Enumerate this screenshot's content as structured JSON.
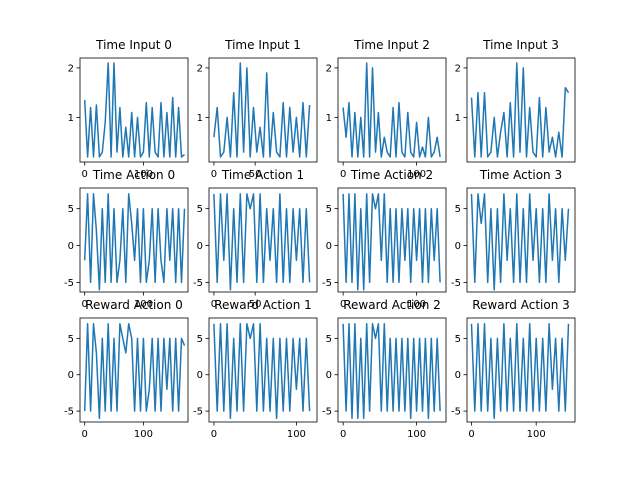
{
  "figure": {
    "background": "#ffffff",
    "line_color": "#1f77b4"
  },
  "chart_data": [
    {
      "type": "line",
      "title": "Time Input 0",
      "xlim": [
        -8,
        176
      ],
      "ylim": [
        0.1,
        2.2
      ],
      "xticks": [
        0,
        100
      ],
      "yticks": [
        1,
        2
      ],
      "x": [
        0,
        5,
        10,
        15,
        20,
        25,
        30,
        35,
        40,
        45,
        50,
        55,
        60,
        65,
        70,
        75,
        80,
        85,
        90,
        95,
        100,
        105,
        110,
        115,
        120,
        125,
        130,
        135,
        140,
        145,
        150,
        155,
        160,
        165,
        170
      ],
      "series": [
        {
          "values": [
            1.35,
            0.2,
            1.2,
            0.2,
            1.25,
            0.2,
            0.3,
            0.9,
            2.1,
            0.2,
            2.1,
            0.3,
            1.2,
            0.2,
            0.8,
            0.2,
            1.1,
            0.2,
            1.0,
            0.2,
            0.3,
            1.3,
            0.2,
            1.2,
            0.3,
            0.2,
            1.3,
            0.2,
            1.1,
            0.2,
            1.4,
            0.2,
            1.2,
            0.2,
            0.25
          ]
        }
      ]
    },
    {
      "type": "line",
      "title": "Time Input 1",
      "xlim": [
        -6,
        125
      ],
      "ylim": [
        0.1,
        2.2
      ],
      "xticks": [
        0,
        50
      ],
      "yticks": [
        1,
        2
      ],
      "x": [
        0,
        4,
        8,
        12,
        16,
        20,
        24,
        28,
        32,
        36,
        40,
        44,
        48,
        52,
        56,
        60,
        64,
        68,
        72,
        76,
        80,
        84,
        88,
        92,
        96,
        100,
        104,
        108,
        112,
        116
      ],
      "series": [
        {
          "values": [
            0.6,
            1.2,
            0.2,
            0.3,
            1.0,
            0.2,
            1.5,
            0.2,
            2.1,
            0.3,
            2.0,
            0.2,
            1.2,
            0.3,
            0.8,
            0.2,
            1.9,
            0.2,
            1.1,
            0.3,
            0.2,
            1.3,
            0.2,
            1.2,
            0.3,
            1.0,
            0.2,
            1.3,
            0.2,
            1.25
          ]
        }
      ]
    },
    {
      "type": "line",
      "title": "Time Input 2",
      "xlim": [
        -7,
        140
      ],
      "ylim": [
        0.1,
        2.2
      ],
      "xticks": [
        0,
        100
      ],
      "yticks": [
        1,
        2
      ],
      "x": [
        0,
        4,
        8,
        12,
        16,
        20,
        24,
        28,
        32,
        36,
        40,
        44,
        48,
        52,
        56,
        60,
        64,
        68,
        72,
        76,
        80,
        84,
        88,
        92,
        96,
        100,
        104,
        108,
        112,
        116,
        120,
        124,
        128,
        132
      ],
      "series": [
        {
          "values": [
            1.2,
            0.6,
            1.3,
            0.2,
            1.1,
            0.2,
            1.0,
            0.2,
            2.1,
            0.2,
            2.0,
            0.3,
            1.1,
            0.2,
            0.6,
            0.3,
            0.2,
            1.2,
            0.2,
            1.3,
            0.3,
            0.2,
            1.1,
            0.3,
            0.2,
            0.9,
            0.2,
            0.4,
            0.2,
            1.0,
            0.2,
            0.3,
            0.6,
            0.2
          ]
        }
      ]
    },
    {
      "type": "line",
      "title": "Time Input 3",
      "xlim": [
        -7,
        160
      ],
      "ylim": [
        0.1,
        2.2
      ],
      "yticks": [
        1,
        2
      ],
      "xticks": [],
      "x": [
        0,
        5,
        10,
        15,
        20,
        25,
        30,
        35,
        40,
        45,
        50,
        55,
        60,
        65,
        70,
        75,
        80,
        85,
        90,
        95,
        100,
        105,
        110,
        115,
        120,
        125,
        130,
        135,
        140,
        145,
        150
      ],
      "series": [
        {
          "values": [
            1.4,
            0.2,
            1.5,
            0.2,
            1.5,
            0.2,
            0.3,
            1.0,
            0.2,
            0.7,
            1.1,
            0.2,
            1.3,
            0.2,
            2.1,
            0.3,
            2.0,
            0.2,
            1.2,
            0.3,
            0.2,
            1.4,
            0.2,
            1.2,
            0.3,
            0.6,
            0.2,
            0.7,
            0.2,
            1.6,
            1.5
          ]
        }
      ]
    },
    {
      "type": "line",
      "title": "Time Action 0",
      "xlim": [
        -8,
        176
      ],
      "ylim": [
        -6.3,
        7.8
      ],
      "xticks": [
        0,
        100
      ],
      "yticks": [
        -5,
        0,
        5
      ],
      "x": [
        0,
        5,
        10,
        15,
        20,
        25,
        30,
        35,
        40,
        45,
        50,
        55,
        60,
        65,
        70,
        75,
        80,
        85,
        90,
        95,
        100,
        105,
        110,
        115,
        120,
        125,
        130,
        135,
        140,
        145,
        150,
        155,
        160,
        165,
        170
      ],
      "series": [
        {
          "values": [
            -2,
            7,
            -5,
            7,
            2,
            -6,
            5,
            -5,
            7,
            -5,
            5,
            -5,
            -2,
            5,
            -5,
            7,
            3,
            -2,
            5,
            -5,
            5,
            -5,
            -2,
            5,
            -5,
            5,
            -2,
            -5,
            5,
            -2,
            5,
            -5,
            5,
            -5,
            5
          ]
        }
      ]
    },
    {
      "type": "line",
      "title": "Time Action 1",
      "xlim": [
        -6,
        125
      ],
      "ylim": [
        -6.3,
        7.8
      ],
      "xticks": [
        0,
        50
      ],
      "yticks": [
        -5,
        0,
        5
      ],
      "x": [
        0,
        4,
        8,
        12,
        16,
        20,
        24,
        28,
        32,
        36,
        40,
        44,
        48,
        52,
        56,
        60,
        64,
        68,
        72,
        76,
        80,
        84,
        88,
        92,
        96,
        100,
        104,
        108,
        112,
        116
      ],
      "series": [
        {
          "values": [
            7,
            -5,
            7,
            -2,
            7,
            -6,
            5,
            -5,
            7,
            -5,
            7,
            5,
            7,
            -5,
            7,
            -5,
            5,
            -2,
            5,
            -5,
            7,
            -5,
            5,
            -5,
            5,
            -2,
            5,
            -5,
            5,
            -5
          ]
        }
      ]
    },
    {
      "type": "line",
      "title": "Time Action 2",
      "xlim": [
        -7,
        140
      ],
      "ylim": [
        -6.3,
        7.8
      ],
      "xticks": [
        0,
        100
      ],
      "yticks": [
        -5,
        0,
        5
      ],
      "x": [
        0,
        4,
        8,
        12,
        16,
        20,
        24,
        28,
        32,
        36,
        40,
        44,
        48,
        52,
        56,
        60,
        64,
        68,
        72,
        76,
        80,
        84,
        88,
        92,
        96,
        100,
        104,
        108,
        112,
        116,
        120,
        124,
        128,
        132
      ],
      "series": [
        {
          "values": [
            7,
            -5,
            7,
            -5,
            7,
            -6,
            5,
            -6,
            7,
            -5,
            7,
            5,
            7,
            -2,
            7,
            -5,
            5,
            -5,
            5,
            -5,
            5,
            -2,
            5,
            -5,
            5,
            -2,
            5,
            -5,
            5,
            -5,
            5,
            -2,
            5,
            -5
          ]
        }
      ]
    },
    {
      "type": "line",
      "title": "Time Action 3",
      "xlim": [
        -7,
        160
      ],
      "ylim": [
        -6.3,
        7.8
      ],
      "xticks": [],
      "yticks": [
        -5,
        0,
        5
      ],
      "x": [
        0,
        5,
        10,
        15,
        20,
        25,
        30,
        35,
        40,
        45,
        50,
        55,
        60,
        65,
        70,
        75,
        80,
        85,
        90,
        95,
        100,
        105,
        110,
        115,
        120,
        125,
        130,
        135,
        140,
        145,
        150
      ],
      "series": [
        {
          "values": [
            7,
            -5,
            7,
            3,
            7,
            -5,
            5,
            -6,
            5,
            -5,
            7,
            -2,
            5,
            -5,
            7,
            -5,
            5,
            -5,
            7,
            -2,
            5,
            -5,
            5,
            -5,
            7,
            -2,
            5,
            -5,
            5,
            -2,
            5
          ]
        }
      ]
    },
    {
      "type": "line",
      "title": "Reward Action 0",
      "xlim": [
        -8,
        176
      ],
      "ylim": [
        -6.5,
        7.8
      ],
      "xticks": [
        0,
        100
      ],
      "yticks": [
        -5,
        0,
        5
      ],
      "x": [
        0,
        5,
        10,
        15,
        20,
        25,
        30,
        35,
        40,
        45,
        50,
        55,
        60,
        65,
        70,
        75,
        80,
        85,
        90,
        95,
        100,
        105,
        110,
        115,
        120,
        125,
        130,
        135,
        140,
        145,
        150,
        155,
        160,
        165,
        170
      ],
      "series": [
        {
          "values": [
            -5,
            7,
            -5,
            7,
            3,
            -6,
            5,
            -5,
            7,
            -5,
            5,
            -5,
            7,
            5,
            3,
            7,
            5,
            -5,
            5,
            -5,
            5,
            -5,
            -2,
            5,
            -5,
            5,
            -5,
            5,
            -2,
            5,
            -5,
            5,
            -5,
            5,
            4
          ]
        }
      ]
    },
    {
      "type": "line",
      "title": "Reward Action 1",
      "xlim": [
        -6,
        125
      ],
      "ylim": [
        -6.5,
        7.8
      ],
      "xticks": [
        0,
        100
      ],
      "yticks": [
        -5,
        0,
        5
      ],
      "x": [
        0,
        4,
        8,
        12,
        16,
        20,
        24,
        28,
        32,
        36,
        40,
        44,
        48,
        52,
        56,
        60,
        64,
        68,
        72,
        76,
        80,
        84,
        88,
        92,
        96,
        100,
        104,
        108,
        112,
        116
      ],
      "series": [
        {
          "values": [
            7,
            -5,
            7,
            -5,
            7,
            -6,
            5,
            -5,
            7,
            -5,
            7,
            5,
            7,
            -5,
            7,
            -5,
            5,
            -5,
            5,
            -6,
            5,
            -5,
            5,
            -5,
            5,
            -2,
            5,
            -5,
            5,
            -5
          ]
        }
      ]
    },
    {
      "type": "line",
      "title": "Reward Action 2",
      "xlim": [
        -7,
        140
      ],
      "ylim": [
        -6.5,
        7.8
      ],
      "xticks": [
        0,
        100
      ],
      "yticks": [
        -5,
        0,
        5
      ],
      "x": [
        0,
        4,
        8,
        12,
        16,
        20,
        24,
        28,
        32,
        36,
        40,
        44,
        48,
        52,
        56,
        60,
        64,
        68,
        72,
        76,
        80,
        84,
        88,
        92,
        96,
        100,
        104,
        108,
        112,
        116,
        120,
        124,
        128,
        132
      ],
      "series": [
        {
          "values": [
            7,
            -5,
            7,
            -6,
            7,
            -6,
            5,
            -6,
            7,
            -5,
            7,
            5,
            7,
            -5,
            7,
            -5,
            5,
            -5,
            5,
            -5,
            5,
            -5,
            5,
            -6,
            5,
            -5,
            5,
            -5,
            5,
            -6,
            5,
            -5,
            5,
            -5
          ]
        }
      ]
    },
    {
      "type": "line",
      "title": "Reward Action 3",
      "xlim": [
        -7,
        160
      ],
      "ylim": [
        -6.5,
        7.8
      ],
      "xticks": [
        0,
        100
      ],
      "yticks": [
        -5,
        0,
        5
      ],
      "x": [
        0,
        5,
        10,
        15,
        20,
        25,
        30,
        35,
        40,
        45,
        50,
        55,
        60,
        65,
        70,
        75,
        80,
        85,
        90,
        95,
        100,
        105,
        110,
        115,
        120,
        125,
        130,
        135,
        140,
        145,
        150
      ],
      "series": [
        {
          "values": [
            7,
            -5,
            7,
            -5,
            7,
            -5,
            5,
            -6,
            5,
            -5,
            7,
            -5,
            5,
            -5,
            7,
            -5,
            5,
            -5,
            7,
            -5,
            5,
            -5,
            5,
            -5,
            7,
            -2,
            5,
            -5,
            5,
            -5,
            7
          ]
        }
      ]
    }
  ]
}
